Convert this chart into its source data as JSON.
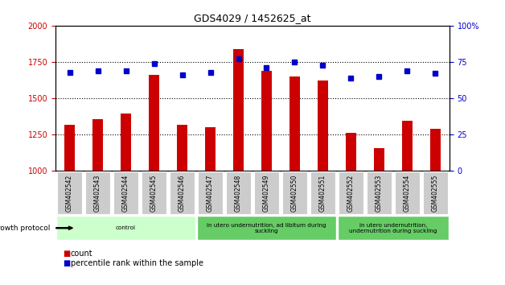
{
  "title": "GDS4029 / 1452625_at",
  "categories": [
    "GSM402542",
    "GSM402543",
    "GSM402544",
    "GSM402545",
    "GSM402546",
    "GSM402547",
    "GSM402548",
    "GSM402549",
    "GSM402550",
    "GSM402551",
    "GSM402552",
    "GSM402553",
    "GSM402554",
    "GSM402555"
  ],
  "counts": [
    1320,
    1355,
    1395,
    1660,
    1320,
    1300,
    1840,
    1690,
    1650,
    1620,
    1260,
    1160,
    1345,
    1290
  ],
  "percentiles": [
    68,
    69,
    69,
    74,
    66,
    68,
    77,
    71,
    75,
    73,
    64,
    65,
    69,
    67
  ],
  "ylim_left": [
    1000,
    2000
  ],
  "ylim_right": [
    0,
    100
  ],
  "yticks_left": [
    1000,
    1250,
    1500,
    1750,
    2000
  ],
  "yticks_right": [
    0,
    25,
    50,
    75,
    100
  ],
  "bar_color": "#cc0000",
  "dot_color": "#0000cc",
  "groups": [
    {
      "label": "control",
      "start": 0,
      "end": 5,
      "color": "#ccffcc"
    },
    {
      "label": "in utero undernutrition, ad libitum during\nsuckling",
      "start": 5,
      "end": 10,
      "color": "#66cc66"
    },
    {
      "label": "in utero undernutrition,\nundernutrition during suckling",
      "start": 10,
      "end": 14,
      "color": "#66cc66"
    }
  ],
  "growth_protocol_label": "growth protocol",
  "legend_items": [
    {
      "color": "#cc0000",
      "label": "count"
    },
    {
      "color": "#0000cc",
      "label": "percentile rank within the sample"
    }
  ],
  "left_tick_color": "#cc0000",
  "right_tick_color": "#0000cc",
  "tick_bg_color": "#cccccc",
  "bg_color": "#ffffff"
}
